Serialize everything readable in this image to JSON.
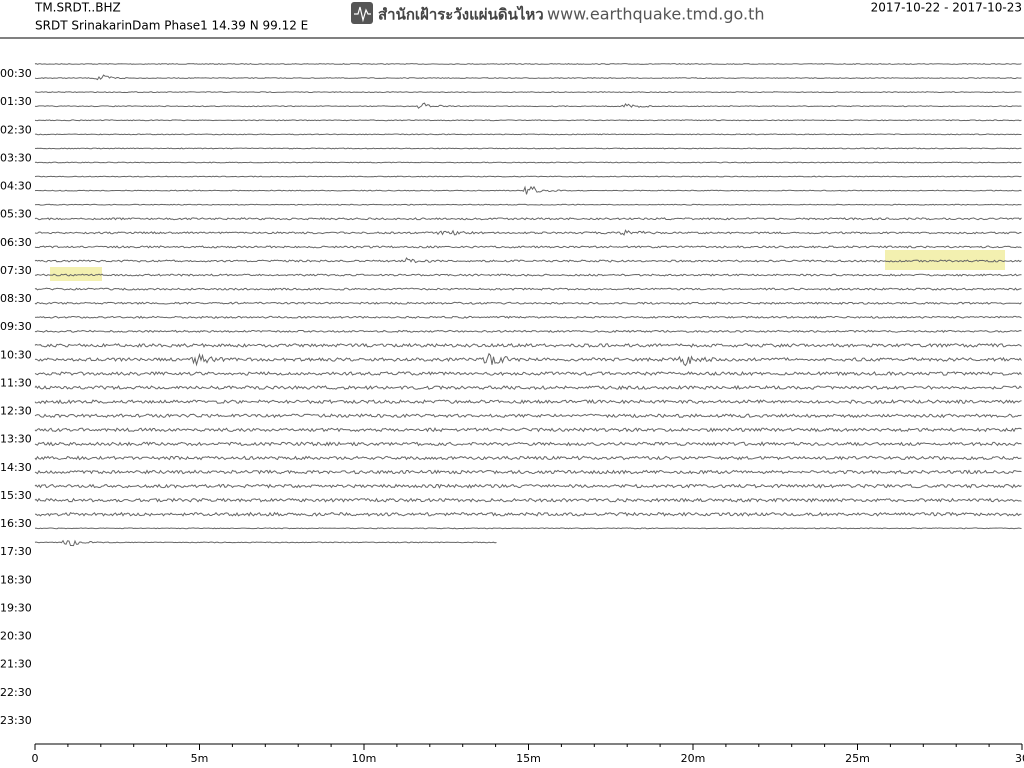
{
  "header": {
    "station": "TM.SRDT..BHZ",
    "site": "SRDT SrinakarinDam Phase1  14.39 N 99.12 E",
    "agency": "สำนักเฝ้าระวังแผ่นดินไหว",
    "url": "www.earthquake.tmd.go.th",
    "date_range": "2017-10-22 - 2017-10-23"
  },
  "row_labels": [
    "00:30",
    "01:30",
    "02:30",
    "03:30",
    "04:30",
    "05:30",
    "06:30",
    "07:30",
    "08:30",
    "09:30",
    "10:30",
    "11:30",
    "12:30",
    "13:30",
    "14:30",
    "15:30",
    "16:30",
    "17:30",
    "18:30",
    "19:30",
    "20:30",
    "21:30",
    "22:30",
    "23:30"
  ],
  "x_axis": {
    "labels": [
      "0",
      "5m",
      "10m",
      "15m",
      "20m",
      "25m",
      "30"
    ]
  }
}
